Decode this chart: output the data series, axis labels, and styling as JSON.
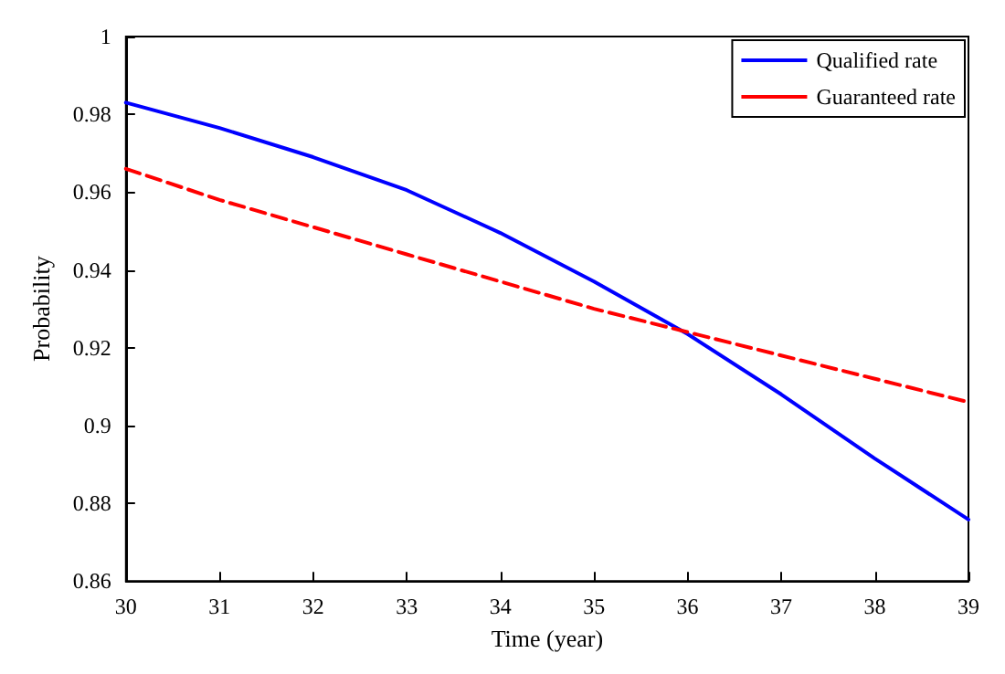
{
  "chart_data": {
    "type": "line",
    "xlabel": "Time (year)",
    "ylabel": "Probability",
    "x": [
      30,
      31,
      32,
      33,
      34,
      35,
      36,
      37,
      38,
      39
    ],
    "series": [
      {
        "name": "Qualified rate",
        "color": "#0000ff",
        "line_style": "solid",
        "values": [
          0.983,
          0.9765,
          0.969,
          0.9605,
          0.9495,
          0.937,
          0.9235,
          0.908,
          0.8915,
          0.8758
        ]
      },
      {
        "name": "Guaranteed rate",
        "color": "#ff0000",
        "line_style": "dashed",
        "values": [
          0.966,
          0.958,
          0.951,
          0.944,
          0.937,
          0.93,
          0.924,
          0.918,
          0.912,
          0.906
        ]
      }
    ],
    "xlim": [
      30,
      39
    ],
    "xticks": [
      30,
      31,
      32,
      33,
      34,
      35,
      36,
      37,
      38,
      39
    ],
    "ylim": [
      0.86,
      1
    ],
    "yticks": [
      0.86,
      0.88,
      0.9,
      0.92,
      0.94,
      0.96,
      0.98,
      1
    ],
    "grid": false,
    "legend": "top right",
    "marker": "none"
  }
}
